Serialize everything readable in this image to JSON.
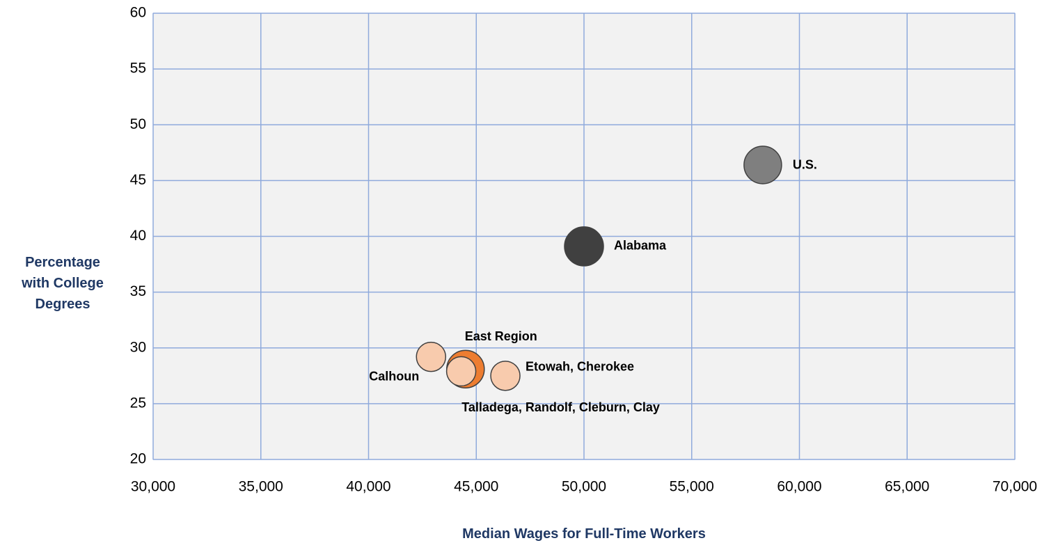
{
  "chart_data": {
    "type": "scatter",
    "xlabel": "Median Wages for Full-Time Workers",
    "ylabel": "Percentage with College Degrees",
    "xlim": [
      30000,
      70000
    ],
    "xticks": [
      {
        "value": 30000,
        "label": "30,000"
      },
      {
        "value": 35000,
        "label": "35,000"
      },
      {
        "value": 40000,
        "label": "40,000"
      },
      {
        "value": 45000,
        "label": "45,000"
      },
      {
        "value": 50000,
        "label": "50,000"
      },
      {
        "value": 55000,
        "label": "55,000"
      },
      {
        "value": 60000,
        "label": "60,000"
      },
      {
        "value": 65000,
        "label": "65,000"
      },
      {
        "value": 70000,
        "label": "70,000"
      }
    ],
    "ylim": [
      20,
      60
    ],
    "yticks": [
      20,
      25,
      30,
      35,
      40,
      45,
      50,
      55,
      60
    ],
    "grid": true,
    "series": [
      {
        "name": "Calhoun",
        "color": "#f8cbad",
        "x": [
          42900
        ],
        "values": [
          29.2
        ]
      },
      {
        "name": "East Region",
        "color": "#ed7d31",
        "x": [
          44500
        ],
        "values": [
          28.1
        ]
      },
      {
        "name": "Talladega, Randolf, Cleburn, Clay",
        "color": "#f8cbad",
        "x": [
          44300
        ],
        "values": [
          27.9
        ]
      },
      {
        "name": "Etowah, Cherokee",
        "color": "#f8cbad",
        "x": [
          46350
        ],
        "values": [
          27.5
        ]
      },
      {
        "name": "Alabama",
        "color": "#404040",
        "x": [
          50000
        ],
        "values": [
          39.1
        ]
      },
      {
        "name": "U.S.",
        "color": "#7f7f7f",
        "x": [
          58300
        ],
        "values": [
          46.4
        ]
      }
    ]
  }
}
